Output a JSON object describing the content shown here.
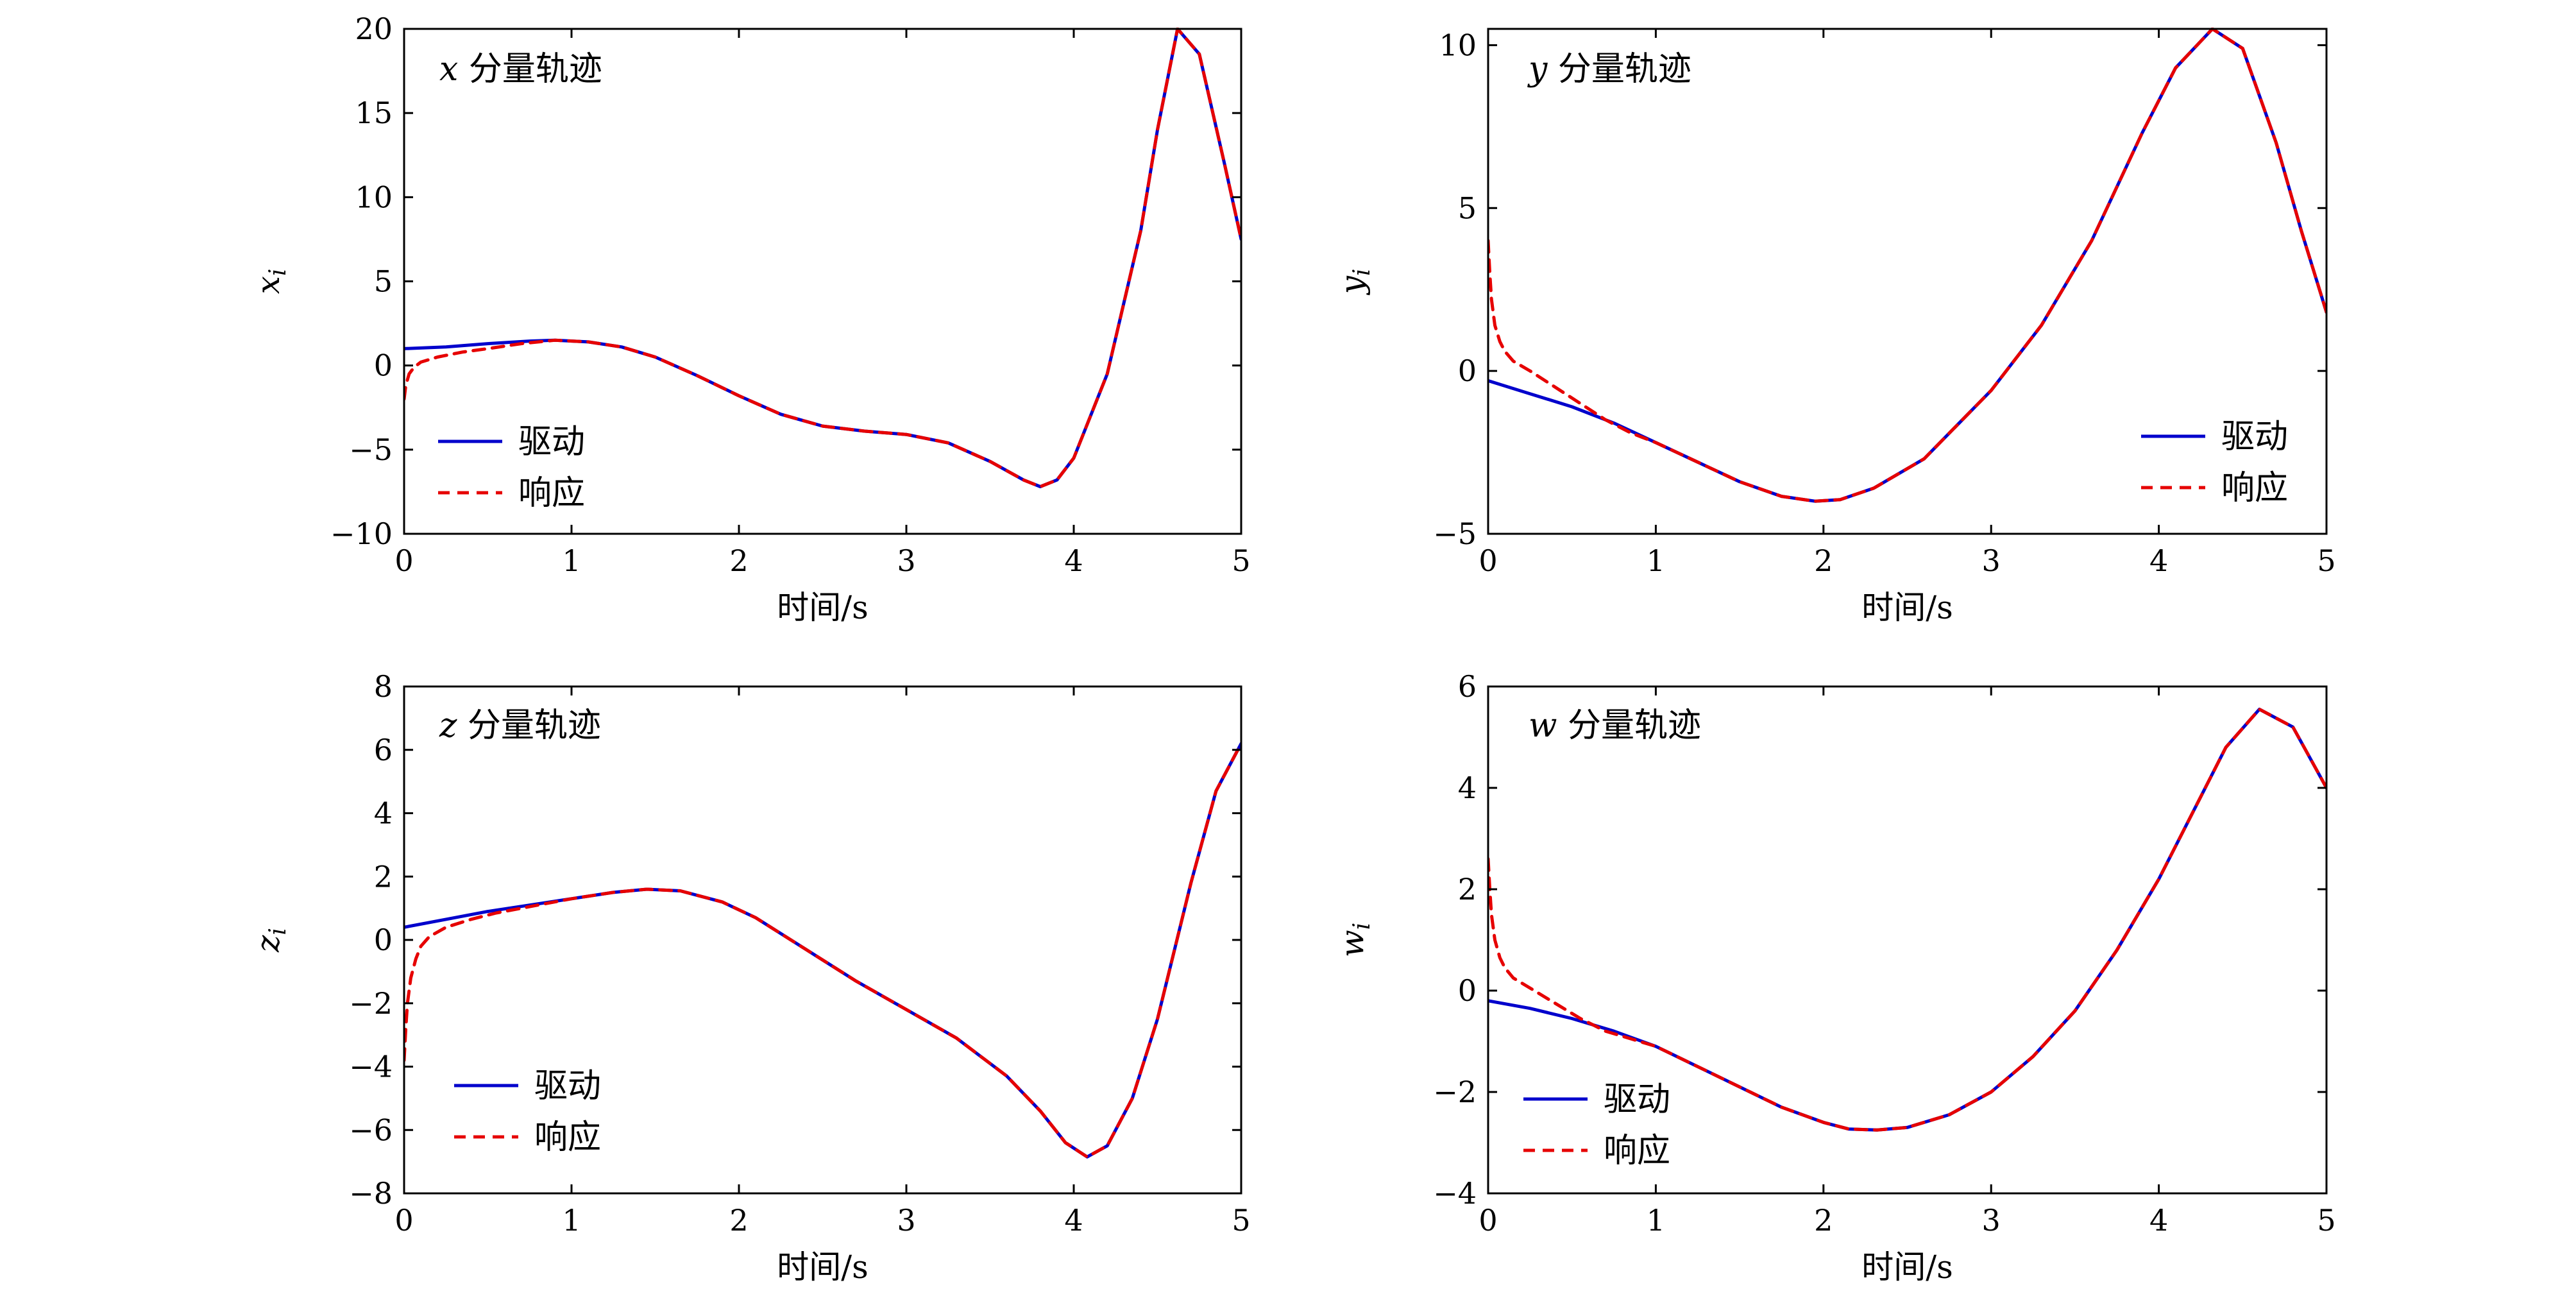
{
  "colors": {
    "drive": "#0000cc",
    "response": "#e60000"
  },
  "chart_data": [
    {
      "type": "line",
      "title": "x 分量轨迹",
      "xlabel": "时间/s",
      "ylabel": "x_i",
      "ylabel_main": "x",
      "ylabel_sub": "i",
      "xlim": [
        0,
        5
      ],
      "ylim": [
        -10,
        20
      ],
      "xticks": [
        0,
        1,
        2,
        3,
        4,
        5
      ],
      "yticks": [
        -10,
        -5,
        0,
        5,
        10,
        15,
        20
      ],
      "ytick_labels": [
        "−10",
        "−5",
        "0",
        "5",
        "10",
        "15",
        "20"
      ],
      "legend": {
        "placement": "lower-left",
        "entries": [
          "驱动",
          "响应"
        ]
      },
      "series": [
        {
          "name": "驱动",
          "style": "solid",
          "x": [
            0,
            0.25,
            0.5,
            0.75,
            0.9,
            1.1,
            1.3,
            1.5,
            1.75,
            2.0,
            2.25,
            2.5,
            2.75,
            3.0,
            3.25,
            3.5,
            3.7,
            3.8,
            3.9,
            4.0,
            4.2,
            4.4,
            4.5,
            4.62,
            4.75,
            4.9,
            5.0
          ],
          "y": [
            1.0,
            1.1,
            1.3,
            1.45,
            1.5,
            1.4,
            1.1,
            0.5,
            -0.6,
            -1.8,
            -2.9,
            -3.6,
            -3.9,
            -4.1,
            -4.6,
            -5.7,
            -6.8,
            -7.2,
            -6.8,
            -5.5,
            -0.5,
            8.0,
            14.0,
            20.0,
            18.5,
            12.0,
            7.5
          ]
        },
        {
          "name": "响应",
          "style": "dashed",
          "x": [
            0,
            0.01,
            0.03,
            0.06,
            0.1,
            0.2,
            0.35,
            0.5,
            0.7,
            0.9,
            1.1,
            1.3,
            1.5,
            1.75,
            2.0,
            2.25,
            2.5,
            2.75,
            3.0,
            3.25,
            3.5,
            3.7,
            3.8,
            3.9,
            4.0,
            4.2,
            4.4,
            4.5,
            4.62,
            4.75,
            4.9,
            5.0
          ],
          "y": [
            -2.0,
            -1.2,
            -0.5,
            -0.1,
            0.2,
            0.5,
            0.8,
            1.0,
            1.3,
            1.5,
            1.4,
            1.1,
            0.5,
            -0.6,
            -1.8,
            -2.9,
            -3.6,
            -3.9,
            -4.1,
            -4.6,
            -5.7,
            -6.8,
            -7.2,
            -6.8,
            -5.5,
            -0.5,
            8.0,
            14.0,
            20.0,
            18.5,
            12.0,
            7.5
          ]
        }
      ]
    },
    {
      "type": "line",
      "title": "y 分量轨迹",
      "xlabel": "时间/s",
      "ylabel": "y_i",
      "ylabel_main": "y",
      "ylabel_sub": "i",
      "xlim": [
        0,
        5
      ],
      "ylim": [
        -5,
        10.5
      ],
      "xticks": [
        0,
        1,
        2,
        3,
        4,
        5
      ],
      "yticks": [
        -5,
        0,
        5,
        10
      ],
      "ytick_labels": [
        "−5",
        "0",
        "5",
        "10"
      ],
      "legend": {
        "placement": "lower-right",
        "entries": [
          "驱动",
          "响应"
        ]
      },
      "series": [
        {
          "name": "驱动",
          "style": "solid",
          "x": [
            0,
            0.25,
            0.5,
            0.75,
            1.0,
            1.25,
            1.5,
            1.75,
            1.95,
            2.1,
            2.3,
            2.6,
            3.0,
            3.3,
            3.6,
            3.9,
            4.1,
            4.32,
            4.5,
            4.7,
            4.85,
            5.0
          ],
          "y": [
            -0.3,
            -0.7,
            -1.1,
            -1.6,
            -2.2,
            -2.8,
            -3.4,
            -3.85,
            -4.0,
            -3.95,
            -3.6,
            -2.7,
            -0.6,
            1.4,
            4.0,
            7.3,
            9.3,
            10.5,
            9.9,
            7.0,
            4.3,
            1.8
          ]
        },
        {
          "name": "响应",
          "style": "dashed",
          "x": [
            0,
            0.01,
            0.02,
            0.04,
            0.07,
            0.1,
            0.15,
            0.25,
            0.4,
            0.55,
            0.7,
            0.85,
            1.0,
            1.25,
            1.5,
            1.75,
            1.95,
            2.1,
            2.3,
            2.6,
            3.0,
            3.3,
            3.6,
            3.9,
            4.1,
            4.32,
            4.5,
            4.7,
            4.85,
            5.0
          ],
          "y": [
            4.0,
            3.0,
            2.2,
            1.4,
            0.9,
            0.6,
            0.3,
            0.0,
            -0.5,
            -1.0,
            -1.5,
            -1.9,
            -2.2,
            -2.8,
            -3.4,
            -3.85,
            -4.0,
            -3.95,
            -3.6,
            -2.7,
            -0.6,
            1.4,
            4.0,
            7.3,
            9.3,
            10.5,
            9.9,
            7.0,
            4.3,
            1.8
          ]
        }
      ]
    },
    {
      "type": "line",
      "title": "z 分量轨迹",
      "xlabel": "时间/s",
      "ylabel": "z_i",
      "ylabel_main": "z",
      "ylabel_sub": "i",
      "xlim": [
        0,
        5
      ],
      "ylim": [
        -8,
        8
      ],
      "xticks": [
        0,
        1,
        2,
        3,
        4,
        5
      ],
      "yticks": [
        -8,
        -6,
        -4,
        -2,
        0,
        2,
        4,
        6,
        8
      ],
      "ytick_labels": [
        "−8",
        "−6",
        "−4",
        "−2",
        "0",
        "2",
        "4",
        "6",
        "8"
      ],
      "legend": {
        "placement": "lower-left",
        "entries": [
          "驱动",
          "响应"
        ]
      },
      "series": [
        {
          "name": "驱动",
          "style": "solid",
          "x": [
            0,
            0.25,
            0.5,
            0.75,
            1.0,
            1.25,
            1.45,
            1.65,
            1.9,
            2.1,
            2.4,
            2.7,
            3.0,
            3.3,
            3.6,
            3.8,
            3.95,
            4.08,
            4.2,
            4.35,
            4.5,
            4.7,
            4.85,
            5.0
          ],
          "y": [
            0.4,
            0.65,
            0.9,
            1.1,
            1.3,
            1.5,
            1.6,
            1.55,
            1.2,
            0.7,
            -0.3,
            -1.3,
            -2.2,
            -3.1,
            -4.3,
            -5.4,
            -6.4,
            -6.85,
            -6.5,
            -5.0,
            -2.5,
            1.8,
            4.7,
            6.2
          ]
        },
        {
          "name": "响应",
          "style": "dashed",
          "x": [
            0,
            0.01,
            0.02,
            0.04,
            0.07,
            0.1,
            0.15,
            0.25,
            0.4,
            0.55,
            0.7,
            0.85,
            1.0,
            1.25,
            1.45,
            1.65,
            1.9,
            2.1,
            2.4,
            2.7,
            3.0,
            3.3,
            3.6,
            3.8,
            3.95,
            4.08,
            4.2,
            4.35,
            4.5,
            4.7,
            4.85,
            5.0
          ],
          "y": [
            -3.8,
            -2.8,
            -2.0,
            -1.2,
            -0.6,
            -0.2,
            0.1,
            0.4,
            0.65,
            0.85,
            1.0,
            1.15,
            1.3,
            1.5,
            1.6,
            1.55,
            1.2,
            0.7,
            -0.3,
            -1.3,
            -2.2,
            -3.1,
            -4.3,
            -5.4,
            -6.4,
            -6.85,
            -6.5,
            -5.0,
            -2.5,
            1.8,
            4.7,
            6.2
          ]
        }
      ]
    },
    {
      "type": "line",
      "title": "w 分量轨迹",
      "xlabel": "时间/s",
      "ylabel": "w_i",
      "ylabel_main": "w",
      "ylabel_sub": "i",
      "xlim": [
        0,
        5
      ],
      "ylim": [
        -4,
        6
      ],
      "xticks": [
        0,
        1,
        2,
        3,
        4,
        5
      ],
      "yticks": [
        -4,
        -2,
        0,
        2,
        4,
        6
      ],
      "ytick_labels": [
        "−4",
        "−2",
        "0",
        "2",
        "4",
        "6"
      ],
      "legend": {
        "placement": "lower-left",
        "entries": [
          "驱动",
          "响应"
        ]
      },
      "series": [
        {
          "name": "驱动",
          "style": "solid",
          "x": [
            0,
            0.25,
            0.5,
            0.75,
            1.0,
            1.25,
            1.5,
            1.75,
            2.0,
            2.15,
            2.32,
            2.5,
            2.75,
            3.0,
            3.25,
            3.5,
            3.75,
            4.0,
            4.2,
            4.4,
            4.6,
            4.8,
            5.0
          ],
          "y": [
            -0.2,
            -0.35,
            -0.55,
            -0.8,
            -1.1,
            -1.5,
            -1.9,
            -2.3,
            -2.6,
            -2.73,
            -2.75,
            -2.7,
            -2.45,
            -2.0,
            -1.3,
            -0.4,
            0.8,
            2.2,
            3.5,
            4.8,
            5.55,
            5.2,
            4.0
          ]
        },
        {
          "name": "响应",
          "style": "dashed",
          "x": [
            0,
            0.01,
            0.02,
            0.04,
            0.07,
            0.1,
            0.15,
            0.25,
            0.4,
            0.55,
            0.7,
            0.85,
            1.0,
            1.25,
            1.5,
            1.75,
            2.0,
            2.15,
            2.32,
            2.5,
            2.75,
            3.0,
            3.25,
            3.5,
            3.75,
            4.0,
            4.2,
            4.4,
            4.6,
            4.8,
            5.0
          ],
          "y": [
            2.6,
            2.0,
            1.5,
            1.0,
            0.65,
            0.45,
            0.25,
            0.05,
            -0.25,
            -0.55,
            -0.8,
            -0.95,
            -1.1,
            -1.5,
            -1.9,
            -2.3,
            -2.6,
            -2.73,
            -2.75,
            -2.7,
            -2.45,
            -2.0,
            -1.3,
            -0.4,
            0.8,
            2.2,
            3.5,
            4.8,
            5.55,
            5.2,
            4.0
          ]
        }
      ]
    }
  ]
}
